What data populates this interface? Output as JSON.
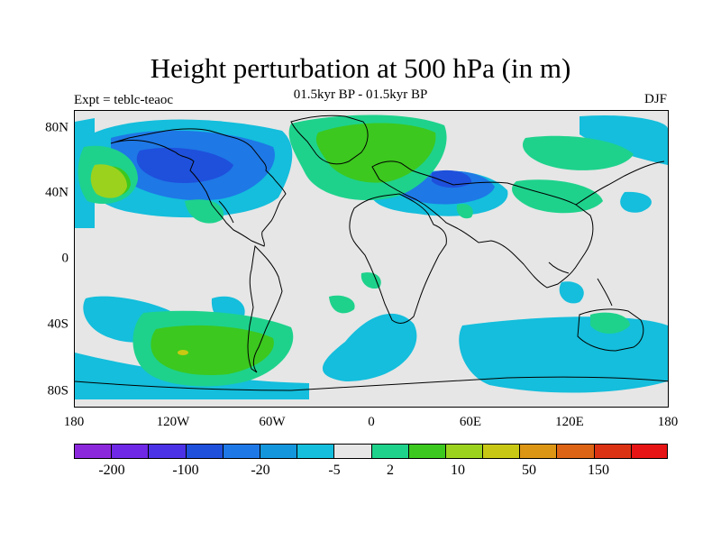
{
  "title": "Height perturbation at 500 hPa (in m)",
  "subtitle": "01.5kyr BP - 01.5kyr BP",
  "left_label": "Expt = teblc-teaoc",
  "right_label": "DJF",
  "lat_labels": [
    "80N",
    "40N",
    "0",
    "40S",
    "80S"
  ],
  "lon_labels": [
    "180",
    "120W",
    "60W",
    "0",
    "60E",
    "120E",
    "180"
  ],
  "colorbar": {
    "colors": [
      "#8c28dc",
      "#6e28e6",
      "#4b32e6",
      "#1e50dc",
      "#1e78e6",
      "#1496dc",
      "#14bedc",
      "#e6e6e6",
      "#1ed28c",
      "#3cc81e",
      "#9bd21e",
      "#c8c814",
      "#dc9614",
      "#dc6414",
      "#dc3214",
      "#e61414"
    ],
    "labels": [
      "-200",
      "-100",
      "-20",
      "-5",
      "2",
      "10",
      "50",
      "150"
    ]
  },
  "map_colors": {
    "land_background": "#e6e6e6",
    "blue_light": "#14bedc",
    "blue_medium": "#1e78e6",
    "blue_dark": "#1e50dc",
    "green_light": "#1ed28c",
    "green": "#3cc81e",
    "yellow_green": "#9bd21e",
    "yellow": "#c8c814",
    "coastline": "#000000"
  }
}
